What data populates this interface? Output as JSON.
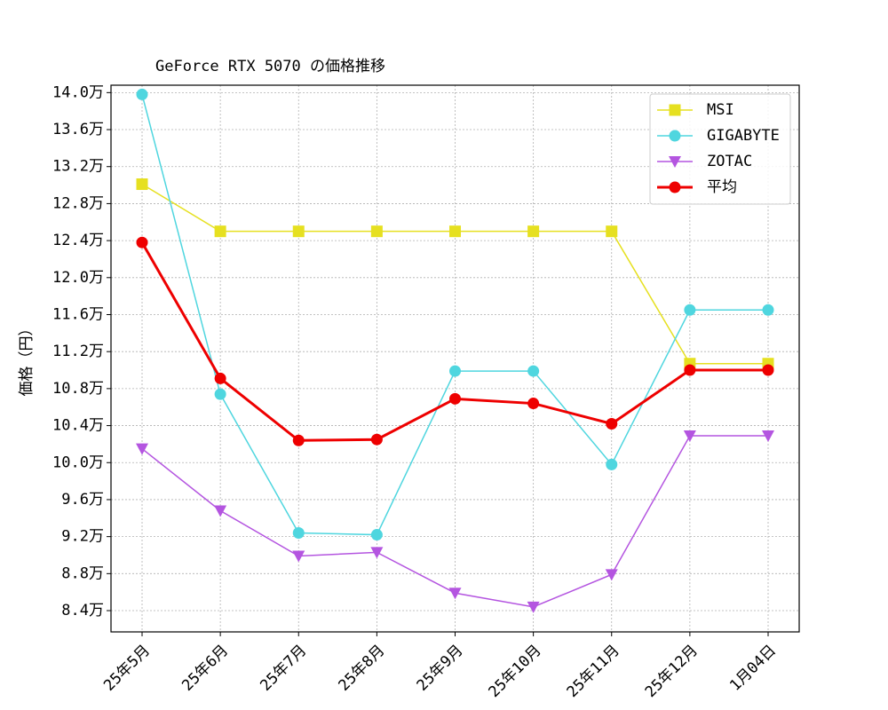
{
  "chart_data": {
    "type": "line",
    "title": "GeForce RTX 5070 の価格推移",
    "y_label": "価格（円）",
    "categories": [
      "25年5月",
      "25年6月",
      "25年7月",
      "25年8月",
      "25年9月",
      "25年10月",
      "25年11月",
      "25年12月",
      "1月04日"
    ],
    "series": [
      {
        "name": "MSI",
        "color": "#e6e020",
        "marker": "square",
        "values": [
          13.01,
          12.5,
          12.5,
          12.5,
          12.5,
          12.5,
          12.5,
          11.07,
          11.07
        ]
      },
      {
        "name": "GIGABYTE",
        "color": "#4fd6df",
        "marker": "circle",
        "values": [
          13.98,
          10.74,
          9.24,
          9.22,
          10.99,
          10.99,
          9.98,
          11.65,
          11.65
        ]
      },
      {
        "name": "ZOTAC",
        "color": "#b455e0",
        "marker": "triangle-down",
        "values": [
          10.15,
          9.48,
          8.99,
          9.03,
          8.59,
          8.44,
          8.79,
          10.29,
          10.29
        ]
      },
      {
        "name": "平均",
        "color": "#ee0000",
        "marker": "circle",
        "width": 3,
        "values": [
          12.38,
          10.91,
          10.24,
          10.25,
          10.69,
          10.64,
          10.42,
          11.0,
          11.0
        ]
      }
    ],
    "ylim": [
      8.17,
      14.08
    ],
    "yticks": [
      {
        "value": 8.4,
        "label": "8.4万"
      },
      {
        "value": 8.8,
        "label": "8.8万"
      },
      {
        "value": 9.2,
        "label": "9.2万"
      },
      {
        "value": 9.6,
        "label": "9.6万"
      },
      {
        "value": 10.0,
        "label": "10.0万"
      },
      {
        "value": 10.4,
        "label": "10.4万"
      },
      {
        "value": 10.8,
        "label": "10.8万"
      },
      {
        "value": 11.2,
        "label": "11.2万"
      },
      {
        "value": 11.6,
        "label": "11.6万"
      },
      {
        "value": 12.0,
        "label": "12.0万"
      },
      {
        "value": 12.4,
        "label": "12.4万"
      },
      {
        "value": 12.8,
        "label": "12.8万"
      },
      {
        "value": 13.2,
        "label": "13.2万"
      },
      {
        "value": 13.6,
        "label": "13.6万"
      },
      {
        "value": 14.0,
        "label": "14.0万"
      }
    ],
    "grid": true,
    "legend": "upper right"
  }
}
